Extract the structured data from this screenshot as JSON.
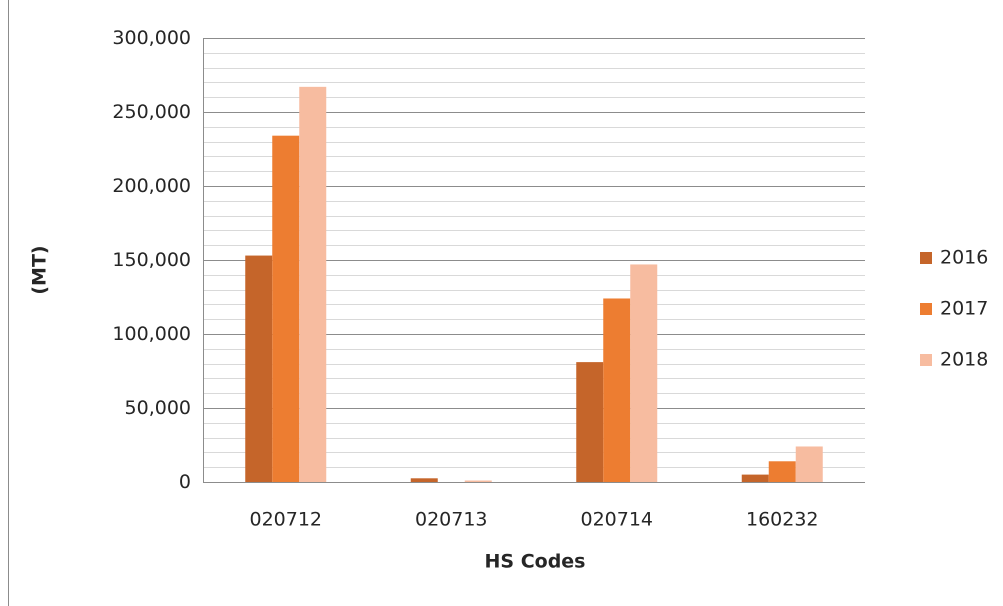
{
  "chart_data": {
    "type": "bar",
    "x_label": "HS Codes",
    "y_label": "(MT)",
    "categories": [
      "020712",
      "020713",
      "020714",
      "160232"
    ],
    "series": [
      {
        "name": "2016",
        "color": "#c5652a",
        "values": [
          153000,
          2500,
          81000,
          5000
        ]
      },
      {
        "name": "2017",
        "color": "#ed7d31",
        "values": [
          234000,
          0,
          124000,
          14000
        ]
      },
      {
        "name": "2018",
        "color": "#f7bca0",
        "values": [
          267000,
          1000,
          147000,
          24000
        ]
      }
    ],
    "ylim": [
      0,
      300000
    ],
    "yticks": [
      {
        "value": 0,
        "label": "0"
      },
      {
        "value": 50000,
        "label": "50,000"
      },
      {
        "value": 100000,
        "label": "100,000"
      },
      {
        "value": 150000,
        "label": "150,000"
      },
      {
        "value": 200000,
        "label": "200,000"
      },
      {
        "value": 250000,
        "label": "250,000"
      },
      {
        "value": 300000,
        "label": "300,000"
      }
    ],
    "yminorticks": [
      10000,
      20000,
      30000,
      40000,
      60000,
      70000,
      80000,
      90000,
      110000,
      120000,
      130000,
      140000,
      160000,
      170000,
      180000,
      190000,
      210000,
      220000,
      230000,
      240000,
      260000,
      270000,
      280000,
      290000
    ],
    "grid": true,
    "legend": "right"
  }
}
